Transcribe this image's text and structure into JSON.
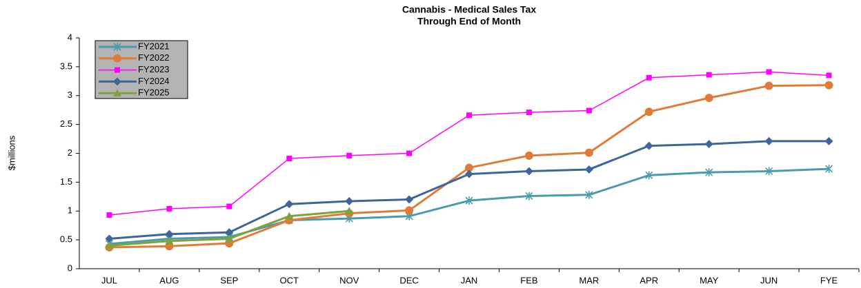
{
  "chart_data": {
    "type": "line",
    "title": "Cannabis - Medical Sales Tax",
    "subtitle": "Through End of Month",
    "y_label": "$millions",
    "categories": [
      "JUL",
      "AUG",
      "SEP",
      "OCT",
      "NOV",
      "DEC",
      "JAN",
      "FEB",
      "MAR",
      "APR",
      "MAY",
      "JUN",
      "FYE"
    ],
    "series": [
      {
        "name": "FY2021",
        "color": "#4a9bab",
        "marker": "asterisk",
        "line_width": 3,
        "values": [
          0.43,
          0.52,
          0.55,
          0.84,
          0.87,
          0.91,
          1.18,
          1.26,
          1.28,
          1.62,
          1.67,
          1.69,
          1.73
        ]
      },
      {
        "name": "FY2022",
        "color": "#e07b39",
        "marker": "circle",
        "line_width": 3,
        "values": [
          0.37,
          0.39,
          0.44,
          0.84,
          0.96,
          1.01,
          1.75,
          1.96,
          2.01,
          2.72,
          2.96,
          3.17,
          3.18
        ]
      },
      {
        "name": "FY2023",
        "color": "#ff00ff",
        "marker": "square",
        "line_width": 1.5,
        "values": [
          0.93,
          1.04,
          1.08,
          1.91,
          1.96,
          2.0,
          2.66,
          2.71,
          2.74,
          3.31,
          3.36,
          3.41,
          3.35
        ]
      },
      {
        "name": "FY2024",
        "color": "#3f6699",
        "marker": "diamond",
        "line_width": 3,
        "values": [
          0.52,
          0.6,
          0.63,
          1.12,
          1.17,
          1.2,
          1.64,
          1.69,
          1.72,
          2.13,
          2.16,
          2.21,
          2.21
        ]
      },
      {
        "name": "FY2025",
        "color": "#7ea23c",
        "marker": "triangle",
        "line_width": 3,
        "values": [
          0.4,
          0.48,
          0.52,
          0.91,
          1.0,
          null,
          null,
          null,
          null,
          null,
          null,
          null,
          null
        ]
      }
    ],
    "ylim": [
      0,
      4
    ],
    "yticks": [
      0,
      0.5,
      1,
      1.5,
      2,
      2.5,
      3,
      3.5,
      4
    ],
    "grid": false,
    "legend": "top-left"
  }
}
